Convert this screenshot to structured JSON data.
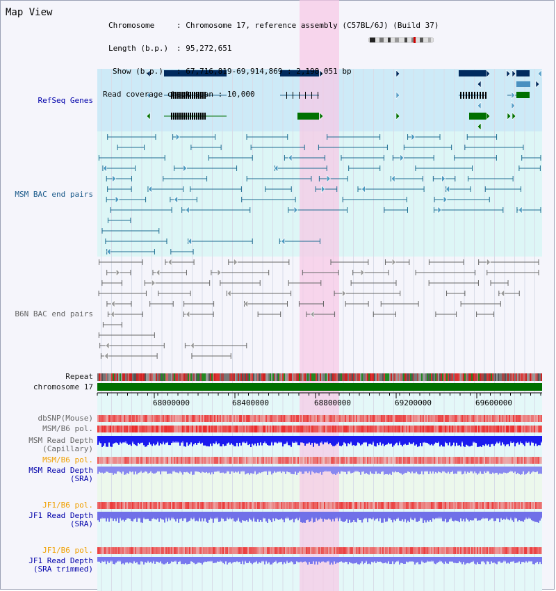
{
  "title": "Map View",
  "info": {
    "chromosome_label": "Chromosome",
    "chromosome_value": "Chromosome 17, reference assembly (C57BL/6J) (Build 37)",
    "length_label": "Length (b.p.)",
    "length_value": "95,272,651",
    "show_label": "Show (b.p.)",
    "show_value": "67,716,819-69,914,869 : 2,198,051 bp",
    "coverage_label": "Read coverage check span",
    "coverage_value": "10,000"
  },
  "tracks": {
    "refseq": "RefSeq Genes",
    "msm_bac": "MSM BAC end pairs",
    "b6n_bac": "B6N BAC end pairs",
    "repeat": "Repeat",
    "chromosome": "chromosome 17",
    "dbsnp": "dbSNP(Mouse)",
    "msm_b6_pol": "MSM/B6 pol.",
    "msm_read_depth_cap_1": "MSM Read Depth",
    "msm_read_depth_cap_2": "(Capillary)",
    "msm_b6_pol_2": "MSM/B6 pol.",
    "msm_read_depth_sra_1": "MSM Read Depth",
    "msm_read_depth_sra_2": "(SRA)",
    "jf1_b6_pol": "JF1/B6 pol.",
    "jf1_read_depth_sra_1": "JF1 Read Depth",
    "jf1_read_depth_sra_2": "(SRA)",
    "jf1_b6_pol_2": "JF1/B6 pol.",
    "jf1_read_depth_trim_1": "JF1 Read Depth",
    "jf1_read_depth_trim_2": "(SRA trimmed)"
  },
  "axis_ticks": [
    "68000000",
    "68400000",
    "68800000",
    "69200000",
    "69600000"
  ],
  "colors": {
    "refseq_bg": "#cdeaf7",
    "bac_bg": "#ddf6f6",
    "highlight": "#f8d8ec",
    "gene_dark": "#002a5e",
    "gene_green": "#007000",
    "chromosome": "#007000"
  }
}
